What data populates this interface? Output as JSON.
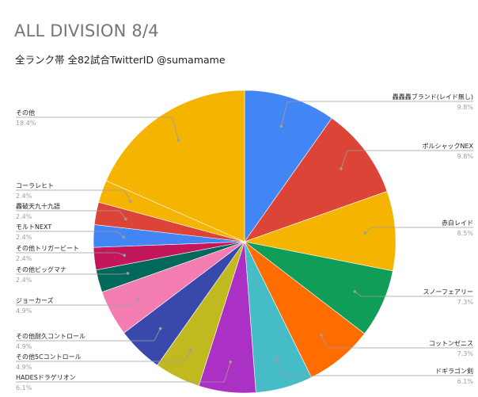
{
  "chart_data": {
    "type": "pie",
    "title": "ALL DIVISION 8/4",
    "subtitle": "全ランク帯 全82試合TwitterID @sumamame",
    "slices": [
      {
        "label": "轟轟轟ブランド(レイド無し)",
        "percent_label": "9.8%",
        "value": 9.8,
        "color": "#4285f4"
      },
      {
        "label": "ポルシャックNEX",
        "percent_label": "9.8%",
        "value": 9.8,
        "color": "#db4437"
      },
      {
        "label": "赤白レイド",
        "percent_label": "8.5%",
        "value": 8.5,
        "color": "#f4b400"
      },
      {
        "label": "スノーフェアリー",
        "percent_label": "7.3%",
        "value": 7.3,
        "color": "#0f9d58"
      },
      {
        "label": "コットンゼニス",
        "percent_label": "7.3%",
        "value": 7.3,
        "color": "#ff6d00"
      },
      {
        "label": "ドギラゴン剣",
        "percent_label": "6.1%",
        "value": 6.1,
        "color": "#46bdc6"
      },
      {
        "label": "HADESドラゲリオン",
        "percent_label": "6.1%",
        "value": 6.1,
        "color": "#ab30c4"
      },
      {
        "label": "その他5Cコントロール",
        "percent_label": "4.9%",
        "value": 4.9,
        "color": "#c0b920"
      },
      {
        "label": "その他耐久コントロール",
        "percent_label": "4.9%",
        "value": 4.9,
        "color": "#3949ab"
      },
      {
        "label": "ジョーカーズ",
        "percent_label": "4.9%",
        "value": 4.9,
        "color": "#f37cb0"
      },
      {
        "label": "その他ビッグマナ",
        "percent_label": "2.4%",
        "value": 2.4,
        "color": "#00695c"
      },
      {
        "label": "その他トリガービート",
        "percent_label": "2.4%",
        "value": 2.4,
        "color": "#c2185b"
      },
      {
        "label": "モルトNEXT",
        "percent_label": "2.4%",
        "value": 2.4,
        "color": "#4285f4"
      },
      {
        "label": "轟破天九十九語",
        "percent_label": "2.4%",
        "value": 2.4,
        "color": "#db4437"
      },
      {
        "label": "コーラレヒト",
        "percent_label": "2.4%",
        "value": 2.4,
        "color": "#f4b400"
      },
      {
        "label": "その他",
        "percent_label": "18.4%",
        "value": 18.4,
        "color": "#f4b400"
      }
    ],
    "legend": "labels beside slices"
  }
}
